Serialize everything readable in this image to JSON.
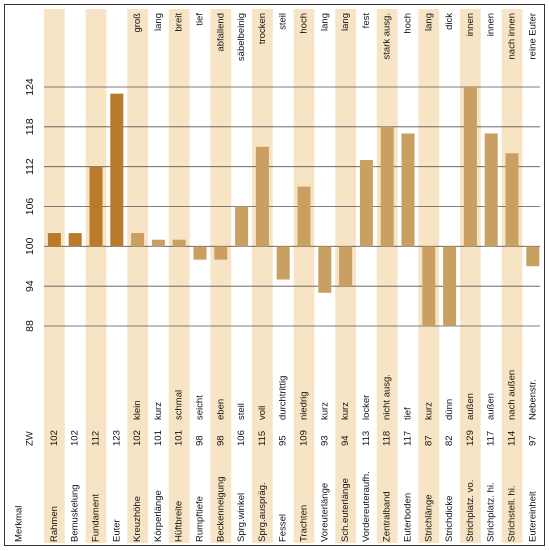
{
  "chart_data": {
    "type": "bar",
    "orientation": "rotated-90",
    "header_labels": {
      "merkmal": "Merkmal",
      "zw": "ZW"
    },
    "baseline": 100,
    "ylim": [
      88,
      124
    ],
    "yticks": [
      88,
      94,
      100,
      106,
      112,
      118,
      124
    ],
    "ytick_labels": [
      "88",
      "94",
      "100",
      "106",
      "112",
      "118",
      "124"
    ],
    "stripe_color": "#f7e4c4",
    "categories": [
      {
        "name": "Rahmen",
        "value": 102,
        "low": "",
        "high": "",
        "color": "#b97b2a"
      },
      {
        "name": "Bemuskelung",
        "value": 102,
        "low": "",
        "high": "",
        "color": "#b97b2a"
      },
      {
        "name": "Fundament",
        "value": 112,
        "low": "",
        "high": "",
        "color": "#b97b2a"
      },
      {
        "name": "Euter",
        "value": 123,
        "low": "",
        "high": "",
        "color": "#b97b2a"
      },
      {
        "name": "Kreuzhöhe",
        "value": 102,
        "low": "klein",
        "high": "groß",
        "color": "#c9a062"
      },
      {
        "name": "Körperlänge",
        "value": 101,
        "low": "kurz",
        "high": "lang",
        "color": "#c9a062"
      },
      {
        "name": "Hüftbreite",
        "value": 101,
        "low": "schmal",
        "high": "breit",
        "color": "#c9a062"
      },
      {
        "name": "Rumpftiefe",
        "value": 98,
        "low": "seicht",
        "high": "tief",
        "color": "#c9a062"
      },
      {
        "name": "Beckenneigung",
        "value": 98,
        "low": "eben",
        "high": "abfallend",
        "color": "#c9a062"
      },
      {
        "name": "Sprg.winkel",
        "value": 106,
        "low": "steil",
        "high": "säbelbeinig",
        "color": "#c9a062"
      },
      {
        "name": "Sprg.auspräg.",
        "value": 115,
        "low": "voll",
        "high": "trocken",
        "color": "#c9a062"
      },
      {
        "name": "Fessel",
        "value": 95,
        "low": "durchtrittig",
        "high": "steil",
        "color": "#c9a062"
      },
      {
        "name": "Trachten",
        "value": 109,
        "low": "niedrig",
        "high": "hoch",
        "color": "#c9a062"
      },
      {
        "name": "Voreuterlänge",
        "value": 93,
        "low": "kurz",
        "high": "lang",
        "color": "#c9a062"
      },
      {
        "name": "Sch.euterlänge",
        "value": 94,
        "low": "kurz",
        "high": "lang",
        "color": "#c9a062"
      },
      {
        "name": "Vordereuteraufh.",
        "value": 113,
        "low": "locker",
        "high": "fest",
        "color": "#c9a062"
      },
      {
        "name": "Zentralband",
        "value": 118,
        "low": "nicht ausg.",
        "high": "stark ausg.",
        "color": "#c9a062"
      },
      {
        "name": "Euterboden",
        "value": 117,
        "low": "tief",
        "high": "hoch",
        "color": "#c9a062"
      },
      {
        "name": "Strichlänge",
        "value": 87,
        "low": "kurz",
        "high": "lang",
        "color": "#c9a062"
      },
      {
        "name": "Strichdicke",
        "value": 82,
        "low": "dünn",
        "high": "dick",
        "color": "#c9a062"
      },
      {
        "name": "Strichplatz. vo.",
        "value": 129,
        "low": "außen",
        "high": "innen",
        "color": "#c9a062"
      },
      {
        "name": "Strichplatz. hi.",
        "value": 117,
        "low": "außen",
        "high": "innen",
        "color": "#c9a062"
      },
      {
        "name": "Strichstell. hi.",
        "value": 114,
        "low": "nach außen",
        "high": "nach innen",
        "color": "#c9a062"
      },
      {
        "name": "Eutereinheit",
        "value": 97,
        "low": "Nebenstr.",
        "high": "reine Euter",
        "color": "#c9a062"
      }
    ]
  }
}
